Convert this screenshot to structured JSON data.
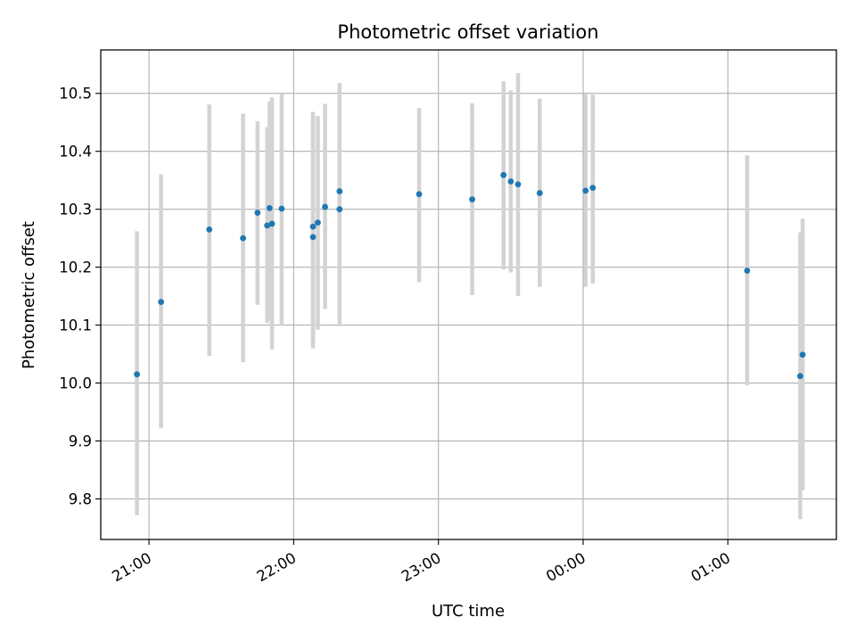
{
  "chart_data": {
    "type": "scatter",
    "title": "Photometric offset variation",
    "xlabel": "UTC time",
    "ylabel": "Photometric offset",
    "grid": true,
    "x_unit": "UTC time (previous day evening to next morning)",
    "xlim": [
      "20:40",
      "01:45"
    ],
    "ylim": [
      9.73,
      10.575
    ],
    "xticks": [
      "21:00",
      "22:00",
      "23:00",
      "00:00",
      "01:00"
    ],
    "yticks": [
      "9.8",
      "9.9",
      "10.0",
      "10.1",
      "10.2",
      "10.3",
      "10.4",
      "10.5"
    ],
    "colors": {
      "point": "#1f77b4",
      "errorbar": "#d3d3d3",
      "grid": "#b0b0b0"
    },
    "series": [
      {
        "points": [
          {
            "x": "20:55",
            "y": 10.015,
            "err_low": 9.772,
            "err_high": 10.262
          },
          {
            "x": "21:05",
            "y": 10.14,
            "err_low": 9.922,
            "err_high": 10.36
          },
          {
            "x": "21:25",
            "y": 10.265,
            "err_low": 10.047,
            "err_high": 10.481
          },
          {
            "x": "21:39",
            "y": 10.25,
            "err_low": 10.036,
            "err_high": 10.465
          },
          {
            "x": "21:45",
            "y": 10.294,
            "err_low": 10.135,
            "err_high": 10.452
          },
          {
            "x": "21:49",
            "y": 10.272,
            "err_low": 10.104,
            "err_high": 10.442
          },
          {
            "x": "21:50",
            "y": 10.302,
            "err_low": 10.108,
            "err_high": 10.486
          },
          {
            "x": "21:51",
            "y": 10.275,
            "err_low": 10.058,
            "err_high": 10.493
          },
          {
            "x": "21:55",
            "y": 10.301,
            "err_low": 10.1,
            "err_high": 10.5
          },
          {
            "x": "22:08",
            "y": 10.252,
            "err_low": 10.06,
            "err_high": 10.468
          },
          {
            "x": "22:08",
            "y": 10.27,
            "err_low": 10.07,
            "err_high": 10.462
          },
          {
            "x": "22:10",
            "y": 10.277,
            "err_low": 10.092,
            "err_high": 10.461
          },
          {
            "x": "22:13",
            "y": 10.304,
            "err_low": 10.128,
            "err_high": 10.482
          },
          {
            "x": "22:19",
            "y": 10.331,
            "err_low": 10.098,
            "err_high": 10.518
          },
          {
            "x": "22:19",
            "y": 10.3,
            "err_low": 10.1,
            "err_high": 10.51
          },
          {
            "x": "22:52",
            "y": 10.326,
            "err_low": 10.174,
            "err_high": 10.475
          },
          {
            "x": "23:14",
            "y": 10.317,
            "err_low": 10.152,
            "err_high": 10.483
          },
          {
            "x": "23:27",
            "y": 10.359,
            "err_low": 10.196,
            "err_high": 10.521
          },
          {
            "x": "23:30",
            "y": 10.348,
            "err_low": 10.191,
            "err_high": 10.505
          },
          {
            "x": "23:33",
            "y": 10.343,
            "err_low": 10.15,
            "err_high": 10.535
          },
          {
            "x": "23:42",
            "y": 10.328,
            "err_low": 10.166,
            "err_high": 10.491
          },
          {
            "x": "00:01",
            "y": 10.332,
            "err_low": 10.166,
            "err_high": 10.499
          },
          {
            "x": "00:04",
            "y": 10.337,
            "err_low": 10.172,
            "err_high": 10.498
          },
          {
            "x": "01:08",
            "y": 10.194,
            "err_low": 9.996,
            "err_high": 10.393
          },
          {
            "x": "01:30",
            "y": 10.012,
            "err_low": 9.765,
            "err_high": 10.26
          },
          {
            "x": "01:31",
            "y": 10.049,
            "err_low": 9.815,
            "err_high": 10.284
          }
        ]
      }
    ]
  }
}
